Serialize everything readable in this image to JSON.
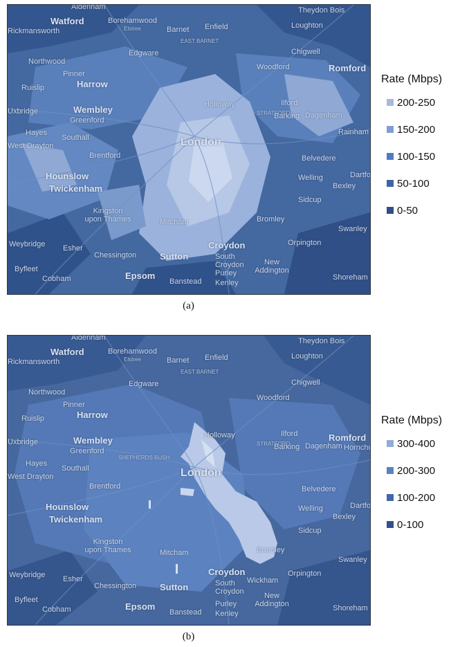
{
  "panels": [
    {
      "caption": "(a)",
      "legend": {
        "title": "Rate (Mbps)",
        "items": [
          {
            "label": "200-250",
            "color": "#a8bada"
          },
          {
            "label": "150-200",
            "color": "#7e9fd2"
          },
          {
            "label": "100-150",
            "color": "#4f7cc0"
          },
          {
            "label": "50-100",
            "color": "#3d64a6"
          },
          {
            "label": "0-50",
            "color": "#2f4f86"
          }
        ]
      },
      "places": [
        "Aldenham",
        "Watford",
        "Borehamwood",
        "Elstree",
        "Barnet",
        "Enfield",
        "Theydon Bois",
        "Loughton",
        "Rickmansworth",
        "EAST BARNET",
        "Chigwell",
        "Edgware",
        "Northwood",
        "Woodford",
        "Pinner",
        "Harrow",
        "Ruislip",
        "Romford",
        "Holloway",
        "Ilford",
        "Wembley",
        "STRATFORD",
        "Barking",
        "Dagenham",
        "Uxbridge",
        "Greenford",
        "Hayes",
        "Southall",
        "West Drayton",
        "London",
        "Rainham",
        "Brentford",
        "Belvedere",
        "Hounslow",
        "Welling",
        "Twickenham",
        "Dartford",
        "Bexley",
        "Sidcup",
        "Kingston upon Thames",
        "Mitcham",
        "Bromley",
        "Orpington",
        "Weybridge",
        "Esher",
        "Chessington",
        "Croydon",
        "Sutton",
        "South Croydon",
        "New Addington",
        "Byfleet",
        "Cobham",
        "Epsom",
        "Purley",
        "Kenley",
        "Banstead",
        "Swanley",
        "Shoreham"
      ]
    },
    {
      "caption": "(b)",
      "legend": {
        "title": "Rate (Mbps)",
        "items": [
          {
            "label": "300-400",
            "color": "#93abd6"
          },
          {
            "label": "200-300",
            "color": "#5783c4"
          },
          {
            "label": "100-200",
            "color": "#3f68aa"
          },
          {
            "label": "0-100",
            "color": "#30518a"
          }
        ]
      },
      "places": [
        "Aldenham",
        "Watford",
        "Borehamwood",
        "Elstree",
        "Barnet",
        "Enfield",
        "Theydon Bois",
        "Loughton",
        "Rickmansworth",
        "EAST BARNET",
        "Chigwell",
        "Edgware",
        "Northwood",
        "Woodford",
        "Pinner",
        "Harrow",
        "Ruislip",
        "Romford",
        "Hornchurch",
        "Holloway",
        "Ilford",
        "Wembley",
        "STRATFORD",
        "Barking",
        "Dagenham",
        "Uxbridge",
        "Greenford",
        "Hayes",
        "Southall",
        "West Drayton",
        "London",
        "SHEPHERDS BUSH",
        "Brentford",
        "Belvedere",
        "Hounslow",
        "Welling",
        "Twickenham",
        "Dartford",
        "Bexley",
        "Sidcup",
        "Kingston upon Thames",
        "Mitcham",
        "Bromley",
        "Orpington",
        "Weybridge",
        "Esher",
        "Chessington",
        "Croydon",
        "Sutton",
        "South Croydon",
        "Wickham",
        "New Addington",
        "Byfleet",
        "Cobham",
        "Epsom",
        "Purley",
        "Kenley",
        "Banstead",
        "Swanley",
        "Shoreham"
      ]
    }
  ],
  "colors": {
    "map_dark": "#2f4c7e",
    "map_mid": "#4a6ea8",
    "map_light": "#8fa9d6",
    "map_bright": "#c8d6ee"
  }
}
